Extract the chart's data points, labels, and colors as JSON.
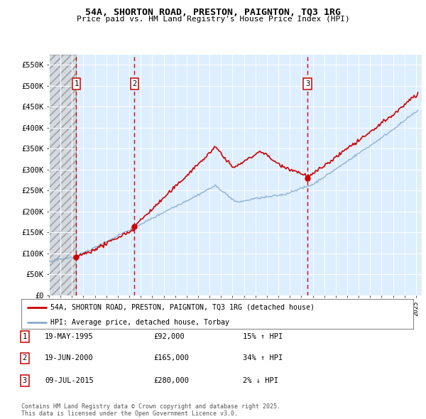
{
  "title_line1": "54A, SHORTON ROAD, PRESTON, PAIGNTON, TQ3 1RG",
  "title_line2": "Price paid vs. HM Land Registry's House Price Index (HPI)",
  "ylim": [
    0,
    575000
  ],
  "yticks": [
    0,
    50000,
    100000,
    150000,
    200000,
    250000,
    300000,
    350000,
    400000,
    450000,
    500000,
    550000
  ],
  "ytick_labels": [
    "£0",
    "£50K",
    "£100K",
    "£150K",
    "£200K",
    "£250K",
    "£300K",
    "£350K",
    "£400K",
    "£450K",
    "£500K",
    "£550K"
  ],
  "sale_prices": [
    92000,
    165000,
    280000
  ],
  "sale_labels": [
    "1",
    "2",
    "3"
  ],
  "sale_hpi_pct": [
    "15% ↑ HPI",
    "34% ↑ HPI",
    "2% ↓ HPI"
  ],
  "sale_date_strs": [
    "19-MAY-1995",
    "19-JUN-2000",
    "09-JUL-2015"
  ],
  "sale_price_strs": [
    "£92,000",
    "£165,000",
    "£280,000"
  ],
  "legend_line1": "54A, SHORTON ROAD, PRESTON, PAIGNTON, TQ3 1RG (detached house)",
  "legend_line2": "HPI: Average price, detached house, Torbay",
  "footer": "Contains HM Land Registry data © Crown copyright and database right 2025.\nThis data is licensed under the Open Government Licence v3.0.",
  "line_color_price": "#cc0000",
  "line_color_hpi": "#88aacc",
  "bg_color": "#ddeeff",
  "vline_color": "#cc0000",
  "xlim_start": 1993,
  "xlim_end": 2025.5
}
